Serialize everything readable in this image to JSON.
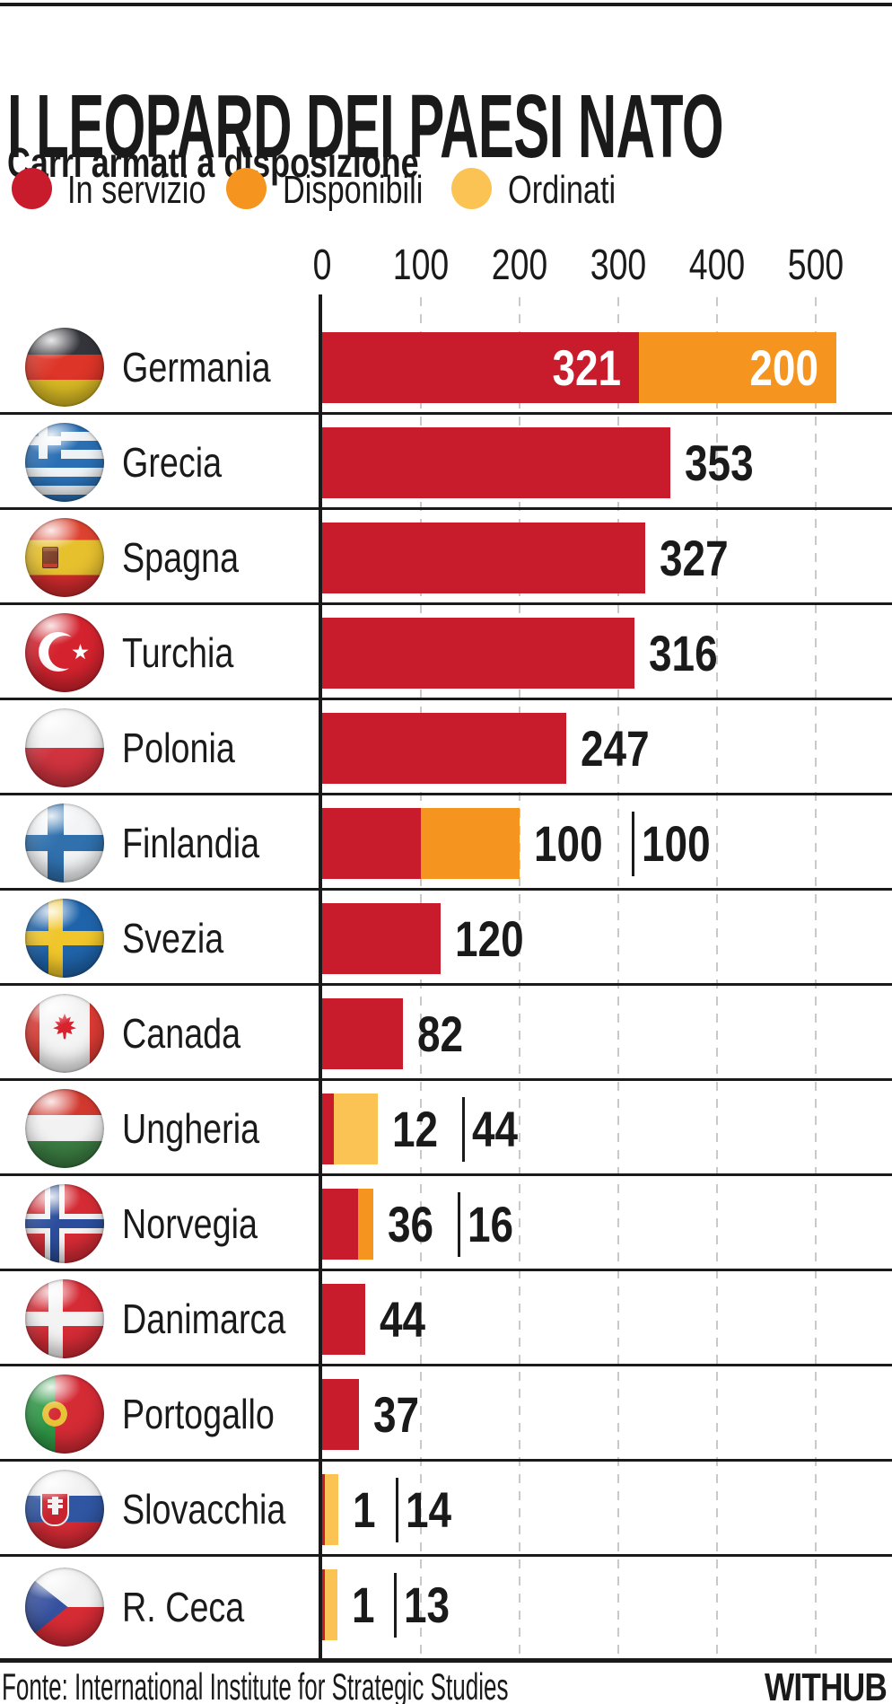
{
  "header": {
    "title": "I LEOPARD DEI PAESI NATO",
    "subtitle": "Carri armati a disposizione"
  },
  "footer": {
    "source": "Fonte: International Institute for Strategic Studies",
    "logo": "WITHUB"
  },
  "colors": {
    "servizio": "#c81b2b",
    "disponibili": "#f5941e",
    "ordinati": "#fbc354",
    "axis": "#1a1a1a",
    "gridline": "#c9c9c9"
  },
  "chart_data": {
    "type": "bar",
    "orientation": "horizontal",
    "title": "I LEOPARD DEI PAESI NATO",
    "subtitle": "Carri armati a disposizione",
    "xlim": [
      0,
      500
    ],
    "xticks": [
      0,
      100,
      200,
      300,
      400,
      500
    ],
    "grid": "dashed-vertical",
    "legend_position": "top",
    "legend": [
      {
        "id": "servizio",
        "label": "In servizio",
        "color": "#c81b2b"
      },
      {
        "id": "disponibili",
        "label": "Disponibili",
        "color": "#f5941e"
      },
      {
        "id": "ordinati",
        "label": "Ordinati",
        "color": "#fbc354"
      }
    ],
    "rows": [
      {
        "country": "Germania",
        "flag": "germania",
        "segments": [
          {
            "type": "servizio",
            "value": 321
          },
          {
            "type": "disponibili",
            "value": 200
          }
        ],
        "value_labels": "inside"
      },
      {
        "country": "Grecia",
        "flag": "grecia",
        "segments": [
          {
            "type": "servizio",
            "value": 353
          }
        ],
        "value_labels": "outside"
      },
      {
        "country": "Spagna",
        "flag": "spagna",
        "segments": [
          {
            "type": "servizio",
            "value": 327
          }
        ],
        "value_labels": "outside"
      },
      {
        "country": "Turchia",
        "flag": "turchia",
        "segments": [
          {
            "type": "servizio",
            "value": 316
          }
        ],
        "value_labels": "outside"
      },
      {
        "country": "Polonia",
        "flag": "polonia",
        "segments": [
          {
            "type": "servizio",
            "value": 247
          }
        ],
        "value_labels": "outside"
      },
      {
        "country": "Finlandia",
        "flag": "finlandia",
        "segments": [
          {
            "type": "servizio",
            "value": 100
          },
          {
            "type": "disponibili",
            "value": 100
          }
        ],
        "value_labels": "outside"
      },
      {
        "country": "Svezia",
        "flag": "svezia",
        "segments": [
          {
            "type": "servizio",
            "value": 120
          }
        ],
        "value_labels": "outside"
      },
      {
        "country": "Canada",
        "flag": "canada",
        "segments": [
          {
            "type": "servizio",
            "value": 82
          }
        ],
        "value_labels": "outside"
      },
      {
        "country": "Ungheria",
        "flag": "ungheria",
        "segments": [
          {
            "type": "servizio",
            "value": 12
          },
          {
            "type": "ordinati",
            "value": 44
          }
        ],
        "value_labels": "outside"
      },
      {
        "country": "Norvegia",
        "flag": "norvegia",
        "segments": [
          {
            "type": "servizio",
            "value": 36
          },
          {
            "type": "disponibili",
            "value": 16
          }
        ],
        "value_labels": "outside"
      },
      {
        "country": "Danimarca",
        "flag": "danimarca",
        "segments": [
          {
            "type": "servizio",
            "value": 44
          }
        ],
        "value_labels": "outside"
      },
      {
        "country": "Portogallo",
        "flag": "portogallo",
        "segments": [
          {
            "type": "servizio",
            "value": 37
          }
        ],
        "value_labels": "outside"
      },
      {
        "country": "Slovacchia",
        "flag": "slovacchia",
        "segments": [
          {
            "type": "servizio",
            "value": 1
          },
          {
            "type": "ordinati",
            "value": 14
          }
        ],
        "value_labels": "outside"
      },
      {
        "country": "R. Ceca",
        "flag": "rceca",
        "segments": [
          {
            "type": "servizio",
            "value": 1
          },
          {
            "type": "ordinati",
            "value": 13
          }
        ],
        "value_labels": "outside"
      }
    ]
  }
}
